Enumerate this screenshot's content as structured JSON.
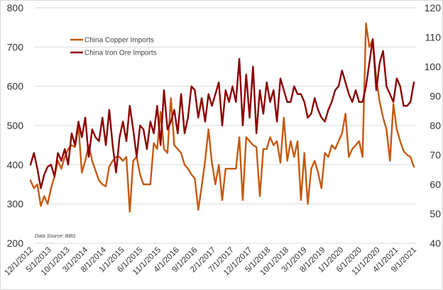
{
  "chart_data": {
    "type": "line",
    "title": "",
    "source_note": "Data Source: BBG",
    "legend_position": "top-left",
    "grid": true,
    "y_left": {
      "min": 200,
      "max": 800,
      "ticks": [
        "200",
        "300",
        "400",
        "500",
        "600",
        "700",
        "800"
      ]
    },
    "y_right": {
      "min": 40,
      "max": 120,
      "ticks": [
        "40",
        "50",
        "60",
        "70",
        "80",
        "90",
        "100",
        "110",
        "120"
      ]
    },
    "x_tick_labels": [
      "12/1/2012",
      "5/1/2013",
      "10/1/2013",
      "3/1/2014",
      "8/1/2014",
      "1/1/2015",
      "6/1/2015",
      "11/1/2015",
      "4/1/2016",
      "9/1/2016",
      "2/1/2017",
      "7/1/2017",
      "12/1/2017",
      "5/1/2018",
      "10/1/2018",
      "3/1/2019",
      "8/1/2019",
      "1/1/2020",
      "6/1/2020",
      "11/1/2020",
      "4/1/2021",
      "9/1/2021"
    ],
    "x_start": "12/1/2012",
    "x_end": "9/1/2021",
    "series": [
      {
        "name": "China Copper Imports",
        "axis": "left",
        "color": "#c55a11",
        "values": [
          360,
          340,
          350,
          295,
          320,
          300,
          340,
          370,
          410,
          390,
          420,
          440,
          450,
          445,
          500,
          380,
          410,
          450,
          410,
          385,
          360,
          350,
          345,
          395,
          410,
          420,
          420,
          410,
          420,
          280,
          410,
          420,
          375,
          350,
          350,
          350,
          455,
          440,
          535,
          440,
          430,
          570,
          450,
          440,
          430,
          400,
          390,
          375,
          365,
          285,
          345,
          410,
          490,
          405,
          350,
          400,
          310,
          390,
          390,
          390,
          390,
          470,
          310,
          470,
          460,
          450,
          445,
          320,
          440,
          440,
          470,
          450,
          460,
          405,
          520,
          410,
          460,
          420,
          460,
          310,
          430,
          300,
          390,
          410,
          380,
          340,
          430,
          420,
          450,
          440,
          460,
          480,
          530,
          420,
          440,
          450,
          460,
          420,
          760,
          700,
          720,
          620,
          560,
          520,
          490,
          410,
          555,
          490,
          460,
          435,
          425,
          420,
          395
        ]
      },
      {
        "name": "China Iron Ore Imports",
        "axis": "left",
        "color": "#8b0000",
        "values": [
          400,
          430,
          390,
          340,
          375,
          395,
          400,
          370,
          430,
          410,
          440,
          400,
          480,
          450,
          510,
          470,
          520,
          420,
          490,
          470,
          460,
          520,
          450,
          540,
          450,
          380,
          470,
          510,
          460,
          550,
          490,
          420,
          500,
          490,
          440,
          510,
          480,
          550,
          450,
          590,
          490,
          510,
          540,
          480,
          580,
          480,
          520,
          600,
          590,
          520,
          570,
          510,
          580,
          550,
          580,
          610,
          500,
          590,
          560,
          600,
          560,
          670,
          500,
          630,
          520,
          650,
          480,
          590,
          530,
          610,
          560,
          590,
          510,
          620,
          590,
          560,
          560,
          600,
          580,
          580,
          560,
          520,
          530,
          570,
          540,
          520,
          510,
          540,
          560,
          590,
          600,
          640,
          610,
          580,
          560,
          590,
          560,
          560,
          600,
          660,
          720,
          590,
          660,
          690,
          600,
          580,
          560,
          620,
          600,
          550,
          550,
          560,
          610
        ]
      }
    ]
  }
}
